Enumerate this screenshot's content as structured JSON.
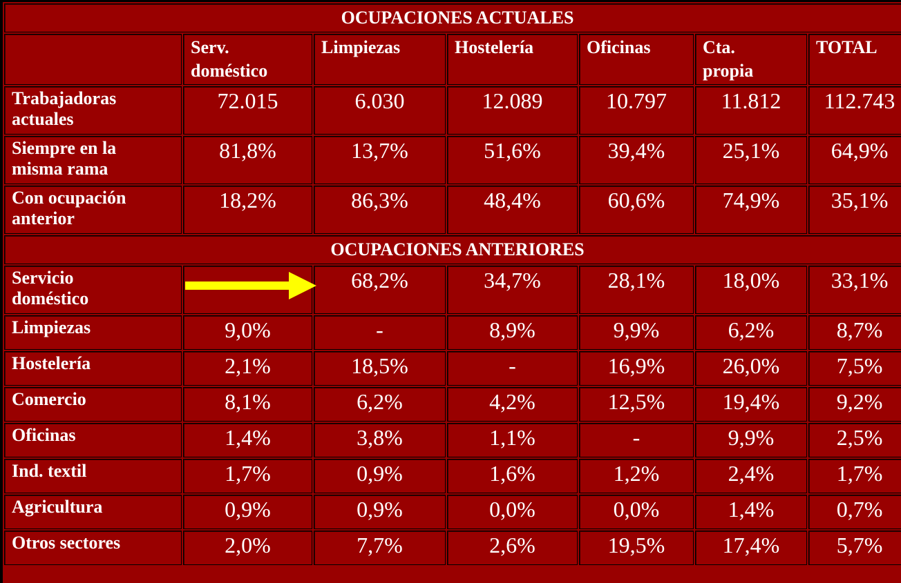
{
  "table": {
    "title": "OCUPACIONES ACTUALES",
    "columns": [
      "Serv. doméstico",
      "Limpiezas",
      "Hostelería",
      "Oficinas",
      "Cta. propia",
      "TOTAL"
    ],
    "current_rows": [
      {
        "label": "Trabajadoras actuales",
        "values": [
          "72.015",
          "6.030",
          "12.089",
          "10.797",
          "11.812",
          "112.743"
        ]
      },
      {
        "label": "Siempre en la misma rama",
        "values": [
          "81,8%",
          "13,7%",
          "51,6%",
          "39,4%",
          "25,1%",
          "64,9%"
        ]
      },
      {
        "label": "Con ocupación anterior",
        "values": [
          "18,2%",
          "86,3%",
          "48,4%",
          "60,6%",
          "74,9%",
          "35,1%"
        ]
      }
    ],
    "section": "OCUPACIONES ANTERIORES",
    "previous_rows": [
      {
        "label": "Servicio doméstico",
        "values": [
          null,
          "68,2%",
          "34,7%",
          "28,1%",
          "18,0%",
          "33,1%"
        ]
      },
      {
        "label": "Limpiezas",
        "values": [
          "9,0%",
          "-",
          "8,9%",
          "9,9%",
          "6,2%",
          "8,7%"
        ]
      },
      {
        "label": "Hostelería",
        "values": [
          "2,1%",
          "18,5%",
          "-",
          "16,9%",
          "26,0%",
          "7,5%"
        ]
      },
      {
        "label": "Comercio",
        "values": [
          "8,1%",
          "6,2%",
          "4,2%",
          "12,5%",
          "19,4%",
          "9,2%"
        ]
      },
      {
        "label": "Oficinas",
        "values": [
          "1,4%",
          "3,8%",
          "1,1%",
          "-",
          "9,9%",
          "2,5%"
        ]
      },
      {
        "label": "Ind. textil",
        "values": [
          "1,7%",
          "0,9%",
          "1,6%",
          "1,2%",
          "2,4%",
          "1,7%"
        ]
      },
      {
        "label": "Agricultura",
        "values": [
          "0,9%",
          "0,9%",
          "0,0%",
          "0,0%",
          "1,4%",
          "0,7%"
        ]
      },
      {
        "label": "Otros sectores",
        "values": [
          "2,0%",
          "7,7%",
          "2,6%",
          "19,5%",
          "17,4%",
          "5,7%"
        ]
      }
    ]
  }
}
